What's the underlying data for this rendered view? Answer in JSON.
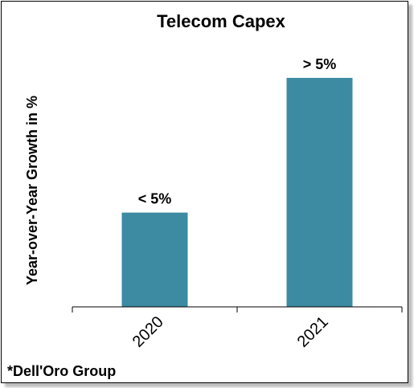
{
  "chart_data": {
    "type": "bar",
    "title": "Telecom Capex",
    "ylabel": "Year-over-Year Growth in %",
    "xlabel": "",
    "categories": [
      "2020",
      "2021"
    ],
    "values": [
      2.1,
      5.1
    ],
    "data_labels": [
      "< 5%",
      "> 5%"
    ],
    "ylim": [
      0,
      5.6
    ],
    "y_ticks_shown": false,
    "grid": false,
    "legend": "none",
    "bar_color": "#3c8ba3"
  },
  "footnote": "*Dell'Oro Group"
}
